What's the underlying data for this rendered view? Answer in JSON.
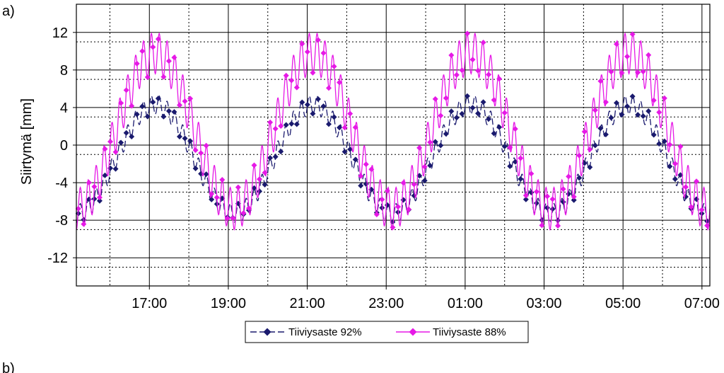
{
  "chart_data": {
    "type": "line",
    "panel_label": "a)",
    "next_panel_label": "b)",
    "title": "",
    "xlabel": "",
    "ylabel": "Siirtymä [mm]",
    "x_unit": "hours elapsed since 15:00",
    "xlim": [
      0.15,
      16.2
    ],
    "ylim": [
      -15,
      15
    ],
    "y_ticks": [
      -12,
      -8,
      -4,
      0,
      4,
      8,
      12
    ],
    "y_tick_labels": [
      "-12",
      "-8",
      "-4",
      "0",
      "4",
      "8",
      "12"
    ],
    "x_tick_positions": [
      2,
      4,
      6,
      8,
      10,
      12,
      14,
      16
    ],
    "x_tick_labels": [
      "17:00",
      "19:00",
      "21:00",
      "23:00",
      "01:00",
      "03:00",
      "05:00",
      "07:00"
    ],
    "grid": true,
    "legend_position": "bottom-center",
    "series": [
      {
        "name": "Tiiviysaste 92%",
        "color": "#1a1a6e",
        "line_style": "dashed",
        "marker": "diamond",
        "base_amplitude": 5.8,
        "base_offset": -1.5,
        "base_period_h": 4,
        "base_phase_h": 0.15,
        "ripple_amplitude": 1.0,
        "ripple_period_h": 0.2
      },
      {
        "name": "Tiiviysaste 88%",
        "color": "#e619e6",
        "line_style": "solid",
        "marker": "diamond",
        "base_amplitude": 8.3,
        "base_offset": 1.5,
        "base_period_h": 4,
        "base_phase_h": 0.15,
        "ripple_amplitude": 2.2,
        "ripple_period_h": 0.2
      }
    ]
  }
}
